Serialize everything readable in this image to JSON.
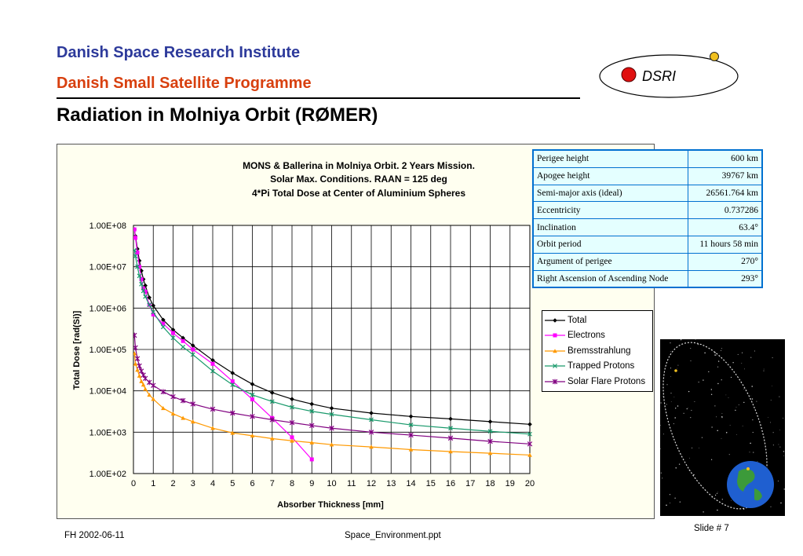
{
  "header": {
    "org": "Danish Space Research Institute",
    "programme": "Danish Small Satellite Programme",
    "title": "Radiation in Molniya Orbit (RØMER)"
  },
  "logo": {
    "text": "DSRI"
  },
  "colors": {
    "org": "#2d3a9b",
    "programme": "#d8400f"
  },
  "chart_data": {
    "type": "line",
    "title": [
      "MONS & Ballerina in Molniya Orbit. 2 Years Mission.",
      "Solar Max. Conditions. RAAN = 125 deg",
      "4*Pi Total Dose at Center of Aluminium Spheres"
    ],
    "xlabel": "Absorber Thickness [mm]",
    "ylabel": "Total Dose [rad(Si)]",
    "xlim": [
      0,
      20
    ],
    "ylim": [
      100,
      100000000
    ],
    "yscale": "log",
    "xticks": [
      "0",
      "1",
      "2",
      "3",
      "4",
      "5",
      "6",
      "7",
      "8",
      "9",
      "10",
      "11",
      "12",
      "13",
      "14",
      "15",
      "16",
      "17",
      "18",
      "19",
      "20"
    ],
    "yticks": [
      {
        "value": 100,
        "label": "1.00E+02"
      },
      {
        "value": 1000,
        "label": "1.00E+03"
      },
      {
        "value": 10000,
        "label": "1.00E+04"
      },
      {
        "value": 100000,
        "label": "1.00E+05"
      },
      {
        "value": 1000000,
        "label": "1.00E+06"
      },
      {
        "value": 10000000,
        "label": "1.00E+07"
      },
      {
        "value": 100000000,
        "label": "1.00E+08"
      }
    ],
    "grid": true,
    "legend_position": "right",
    "series": [
      {
        "name": "Total",
        "color": "#000000",
        "marker": "diamond",
        "x": [
          0.05,
          0.1,
          0.2,
          0.3,
          0.4,
          0.5,
          0.6,
          0.8,
          1,
          1.5,
          2,
          2.5,
          3,
          4,
          5,
          6,
          7,
          8,
          9,
          10,
          12,
          14,
          16,
          18,
          20
        ],
        "y": [
          80000000,
          55000000,
          27000000,
          14000000,
          8000000,
          5000000,
          3500000,
          1800000,
          1150000,
          520000,
          300000,
          190000,
          125000,
          55000,
          27000,
          14500,
          9000,
          6300,
          4800,
          3800,
          2900,
          2400,
          2100,
          1800,
          1550
        ]
      },
      {
        "name": "Electrons",
        "color": "#ff00ff",
        "marker": "square",
        "x": [
          0.05,
          0.1,
          0.2,
          0.3,
          0.4,
          0.5,
          0.6,
          0.8,
          1,
          1.5,
          2,
          2.5,
          3,
          4,
          5,
          6,
          7,
          8,
          9
        ],
        "y": [
          80000000,
          50000000,
          22000000,
          10000000,
          5000000,
          3000000,
          2500000,
          1200000,
          700000,
          420000,
          250000,
          160000,
          100000,
          45000,
          17000,
          6200,
          2200,
          750,
          220
        ]
      },
      {
        "name": "Bremsstrahlung",
        "color": "#ff9900",
        "marker": "triangle",
        "x": [
          0.05,
          0.1,
          0.2,
          0.3,
          0.4,
          0.5,
          0.6,
          0.8,
          1,
          1.5,
          2,
          2.5,
          3,
          4,
          5,
          6,
          7,
          8,
          9,
          10,
          12,
          14,
          16,
          18,
          20
        ],
        "y": [
          80000,
          45000,
          32000,
          23000,
          17000,
          14000,
          11000,
          8000,
          6300,
          3800,
          2800,
          2200,
          1800,
          1250,
          960,
          820,
          700,
          620,
          560,
          500,
          440,
          380,
          340,
          310,
          280
        ]
      },
      {
        "name": "Trapped Protons",
        "color": "#1a9a6c",
        "marker": "x",
        "x": [
          0.05,
          0.1,
          0.2,
          0.3,
          0.4,
          0.5,
          0.6,
          0.8,
          1,
          1.5,
          2,
          2.5,
          3,
          4,
          5,
          6,
          7,
          8,
          9,
          10,
          12,
          14,
          16,
          18,
          20
        ],
        "y": [
          25000000,
          18000000,
          10000000,
          6000000,
          3800000,
          2600000,
          1900000,
          1200000,
          800000,
          350000,
          190000,
          115000,
          75000,
          30000,
          14000,
          8000,
          5500,
          4000,
          3200,
          2700,
          2000,
          1500,
          1250,
          1050,
          900
        ]
      },
      {
        "name": "Solar Flare Protons",
        "color": "#800080",
        "marker": "star",
        "x": [
          0.05,
          0.1,
          0.2,
          0.3,
          0.4,
          0.5,
          0.6,
          0.8,
          1,
          1.5,
          2,
          2.5,
          3,
          4,
          5,
          6,
          7,
          8,
          9,
          10,
          12,
          14,
          16,
          18,
          20
        ],
        "y": [
          220000,
          110000,
          60000,
          40000,
          30000,
          24000,
          20000,
          16000,
          13500,
          9500,
          7200,
          5800,
          4800,
          3600,
          2900,
          2400,
          2000,
          1700,
          1450,
          1250,
          1000,
          850,
          720,
          600,
          520
        ]
      }
    ]
  },
  "params": [
    {
      "label": "Perigee height",
      "value": "600 km"
    },
    {
      "label": "Apogee height",
      "value": "39767 km"
    },
    {
      "label": "Semi-major axis (ideal)",
      "value": "26561.764 km"
    },
    {
      "label": "Eccentricity",
      "value": "0.737286"
    },
    {
      "label": "Inclination",
      "value": "63.4°"
    },
    {
      "label": "Orbit period",
      "value": "11 hours 58 min"
    },
    {
      "label": "Argument of perigee",
      "value": "270°"
    },
    {
      "label": "Right Ascension of Ascending Node",
      "value": "293°"
    }
  ],
  "footer": {
    "left": "FH  2002-06-11",
    "center": "Space_Environment.ppt",
    "right": "Slide # 7"
  }
}
